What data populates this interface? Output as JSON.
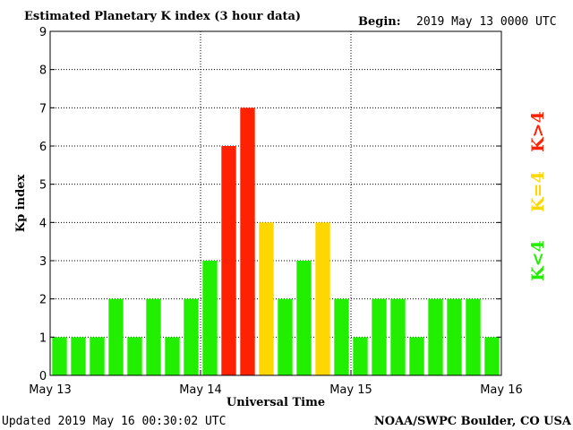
{
  "header": {
    "title": "Estimated Planetary K index (3 hour data)",
    "begin_label": "Begin:",
    "begin_value": "2019 May 13 0000 UTC"
  },
  "footer": {
    "updated": "Updated 2019 May 16 00:30:02 UTC",
    "credit": "NOAA/SWPC Boulder, CO USA"
  },
  "legend": {
    "gt4": "K>4",
    "eq4": "K=4",
    "lt4": "K<4"
  },
  "colors": {
    "lt4": "#22ee00",
    "eq4": "#ffd700",
    "gt4": "#ff2200"
  },
  "chart_data": {
    "type": "bar",
    "title": "Estimated Planetary K index (3 hour data)",
    "xlabel": "Universal Time",
    "ylabel": "Kp index",
    "ylim": [
      0,
      9
    ],
    "yticks": [
      0,
      1,
      2,
      3,
      4,
      5,
      6,
      7,
      8,
      9
    ],
    "xtick_labels": [
      "May 13",
      "May 14",
      "May 15",
      "May 16"
    ],
    "grid": true,
    "values": [
      1,
      1,
      1,
      2,
      1,
      2,
      1,
      2,
      3,
      6,
      7,
      4,
      2,
      3,
      4,
      2,
      1,
      2,
      2,
      1,
      2,
      2,
      2,
      1
    ]
  }
}
